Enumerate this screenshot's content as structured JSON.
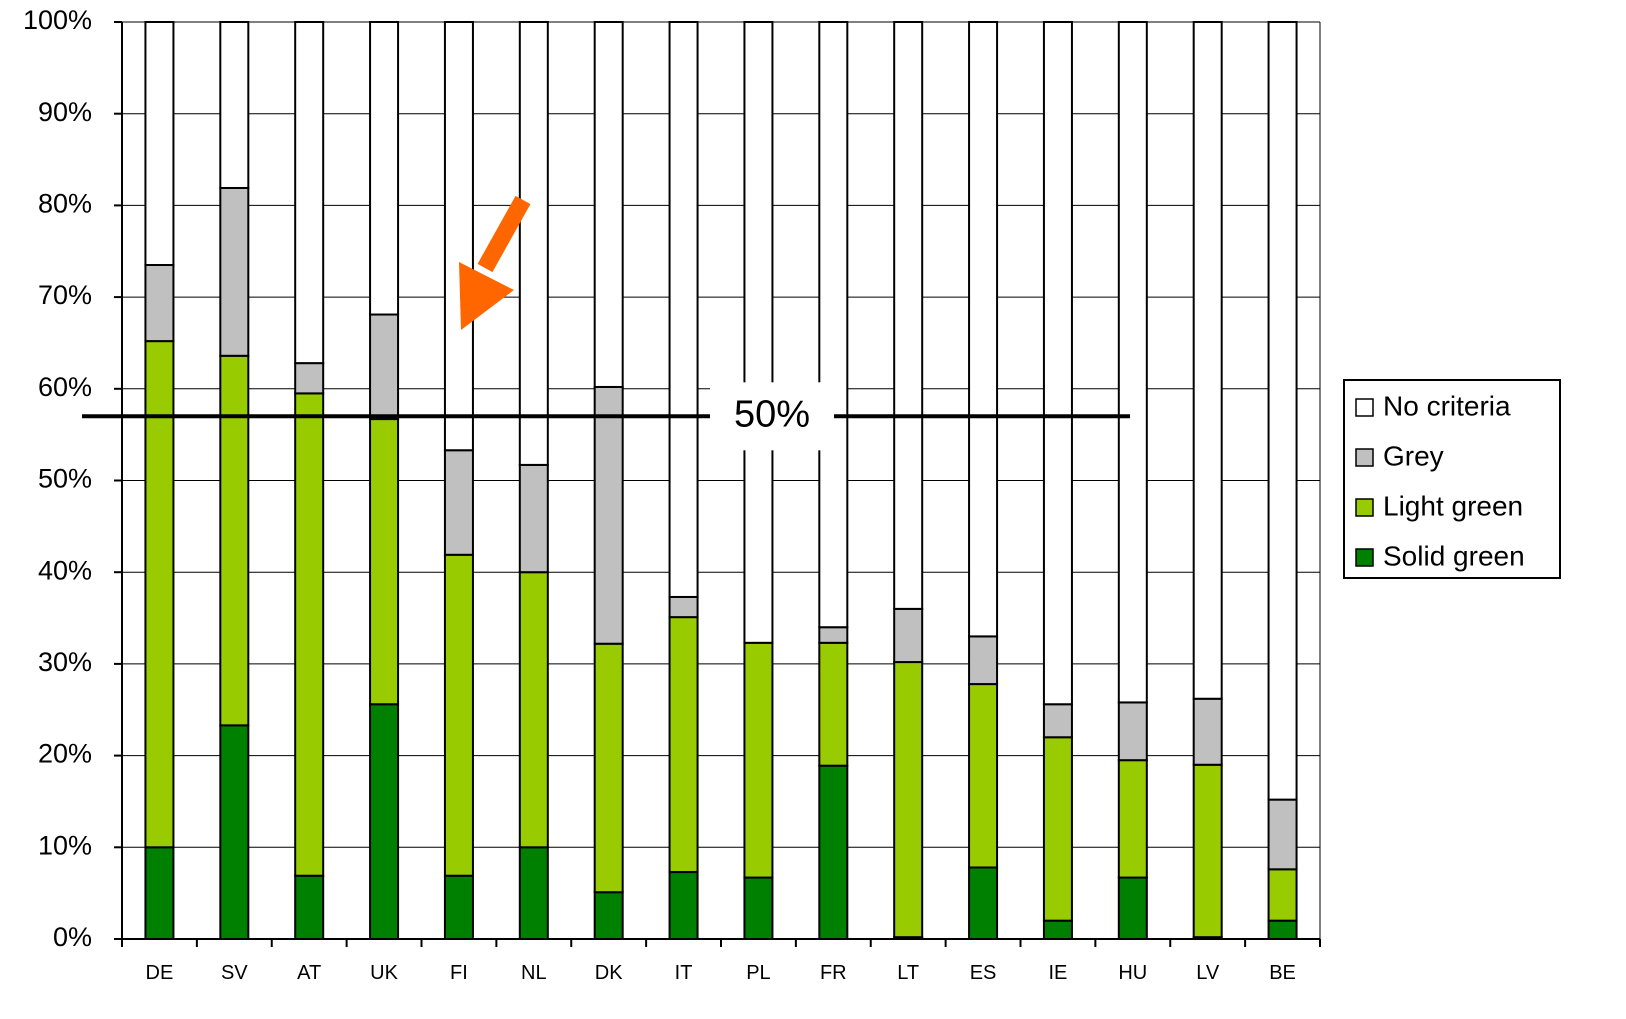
{
  "chart_data": {
    "type": "bar",
    "stacked": true,
    "categories": [
      "DE",
      "SV",
      "AT",
      "UK",
      "FI",
      "NL",
      "DK",
      "IT",
      "PL",
      "FR",
      "LT",
      "ES",
      "IE",
      "HU",
      "LV",
      "BE"
    ],
    "series": [
      {
        "name": "Solid green",
        "color": "#008000",
        "values": [
          10,
          23.3,
          6.9,
          25.6,
          6.9,
          10,
          5.1,
          7.3,
          6.7,
          18.9,
          0.2,
          7.8,
          2,
          6.7,
          0.2,
          2
        ]
      },
      {
        "name": "Light green",
        "color": "#99cc00",
        "values": [
          55.2,
          40.3,
          52.6,
          31.1,
          35,
          30,
          27.1,
          27.8,
          25.6,
          13.4,
          30,
          20,
          20,
          12.8,
          18.8,
          5.6
        ]
      },
      {
        "name": "Grey",
        "color": "#c0c0c0",
        "values": [
          8.3,
          18.3,
          3.3,
          11.4,
          11.4,
          11.7,
          28,
          2.2,
          0,
          1.7,
          5.8,
          5.2,
          3.6,
          6.3,
          7.2,
          7.6
        ]
      },
      {
        "name": "No criteria",
        "color": "#ffffff",
        "values": [
          26.5,
          18.1,
          37.2,
          31.9,
          46.7,
          48.3,
          39.8,
          62.7,
          67.7,
          66,
          64,
          67,
          74.4,
          74.2,
          73.8,
          84.8
        ]
      }
    ],
    "yticks": [
      "0%",
      "10%",
      "20%",
      "30%",
      "40%",
      "50%",
      "60%",
      "70%",
      "80%",
      "90%",
      "100%"
    ],
    "ylim": [
      0,
      100
    ],
    "grid": true,
    "legend": {
      "position": "right",
      "entries_top_to_bottom": [
        "No criteria",
        "Grey",
        "Light green",
        "Solid green"
      ]
    },
    "annotations": {
      "reference_line": {
        "label": "50%",
        "y": 57,
        "color": "#000000"
      },
      "arrow": {
        "color": "#ff6600",
        "points_to": "FI"
      }
    }
  }
}
